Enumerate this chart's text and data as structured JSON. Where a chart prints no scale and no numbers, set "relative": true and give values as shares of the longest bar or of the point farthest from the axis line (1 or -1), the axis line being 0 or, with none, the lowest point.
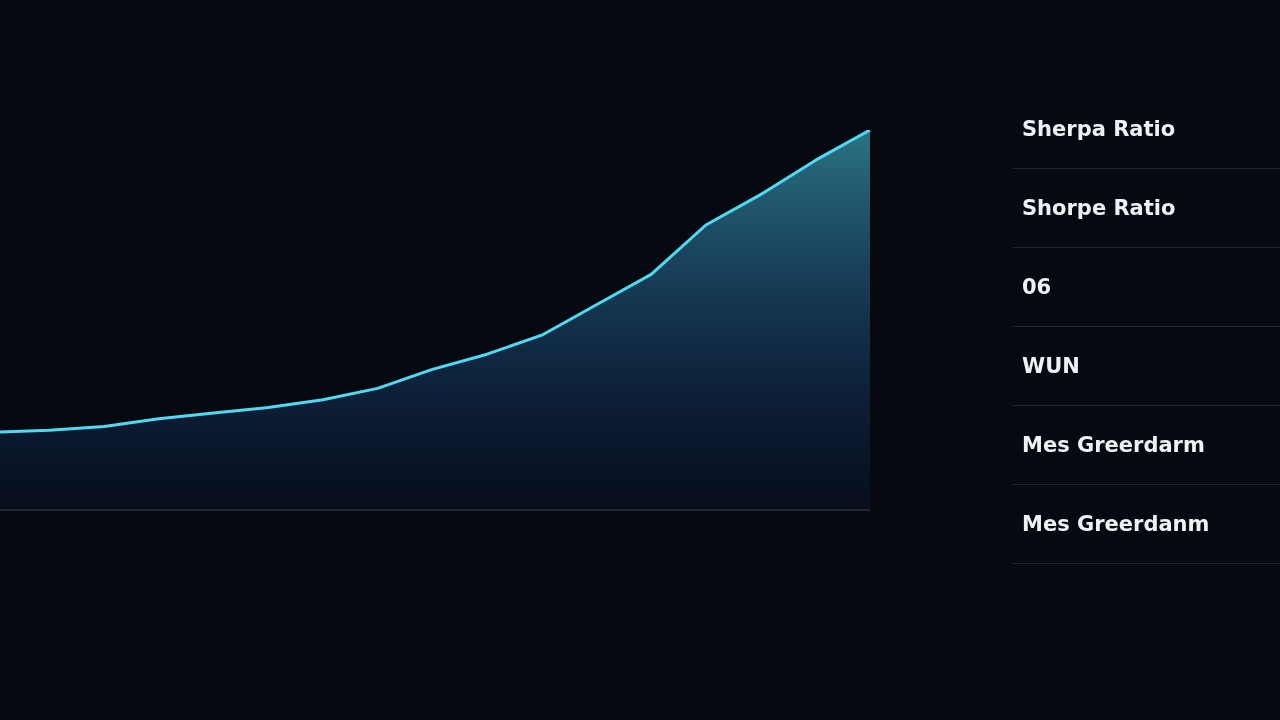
{
  "chart_data": [
    {
      "type": "area",
      "relative": true,
      "categories": [
        null,
        null,
        null,
        null,
        null,
        null,
        null,
        null,
        null,
        null,
        null,
        null,
        null,
        null,
        null,
        null,
        null,
        null
      ],
      "series": [
        {
          "color": "#4fd9f2",
          "values": [
            0.2,
            0.205,
            0.21,
            0.22,
            0.24,
            0.255,
            0.27,
            0.29,
            0.32,
            0.37,
            0.41,
            0.46,
            0.54,
            0.62,
            0.75,
            0.83,
            0.92,
            1.0
          ]
        }
      ]
    },
    {
      "type": "other",
      "annotations": [
        "Sherpa Ratio",
        "Shorpe Ratio",
        "06",
        "WUN",
        "Mes Greerdarm",
        "Mes Greerdanm"
      ]
    }
  ]
}
